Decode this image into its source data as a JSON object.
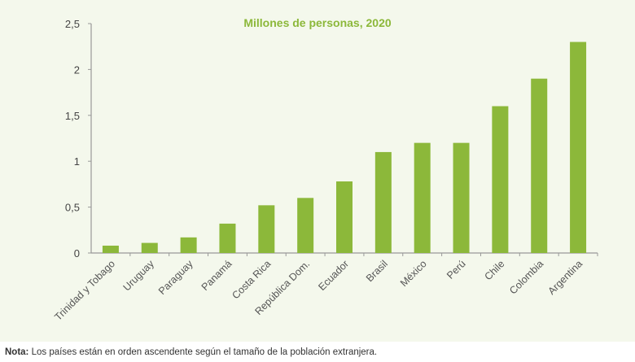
{
  "chart_data": {
    "type": "bar",
    "title": "Millones de personas, 2020",
    "categories": [
      "Trinidad y Tobago",
      "Uruguay",
      "Paraguay",
      "Panamá",
      "Costa Rica",
      "República Dom.",
      "Ecuador",
      "Brasil",
      "México",
      "Perú",
      "Chile",
      "Colombia",
      "Argentina"
    ],
    "values": [
      0.08,
      0.11,
      0.17,
      0.32,
      0.52,
      0.6,
      0.78,
      1.1,
      1.2,
      1.2,
      1.6,
      1.9,
      2.3
    ],
    "ylim": [
      0,
      2.5
    ],
    "yticks": [
      "0",
      "0,5",
      "1",
      "1,5",
      "2",
      "2,5"
    ],
    "xlabel": "",
    "ylabel": "",
    "grid": false,
    "colors": {
      "bar": "#8cb83a",
      "title": "#8cb83a",
      "axis": "#999999",
      "background": "#f4f8ec"
    }
  },
  "note": {
    "label": "Nota:",
    "text": " Los países están en orden ascendente según el tamaño de la población extranjera."
  }
}
